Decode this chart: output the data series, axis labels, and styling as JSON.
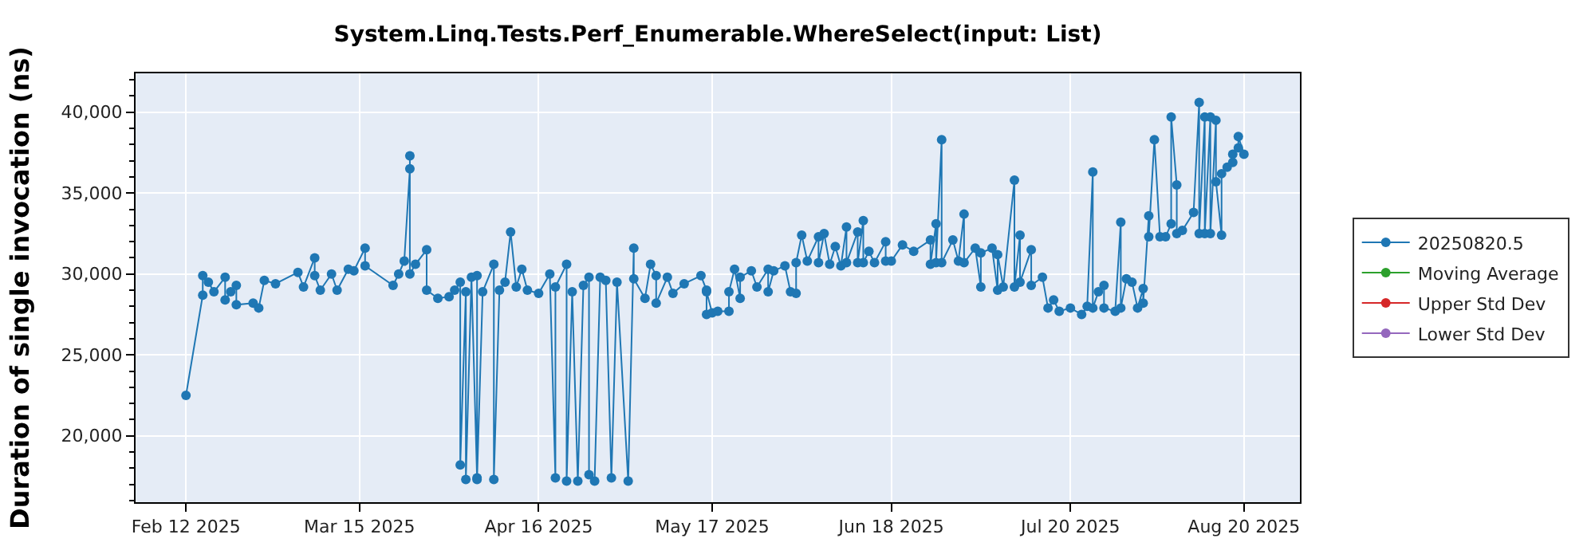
{
  "chart_data": {
    "type": "line",
    "title": "System.Linq.Tests.Perf_Enumerable.WhereSelect(input: List)",
    "ylabel": "Duration of single invocation (ns)",
    "xlim": [
      "2025-02-03",
      "2025-08-30"
    ],
    "xticks": [
      {
        "value": "2025-02-12",
        "label": "Feb 12 2025"
      },
      {
        "value": "2025-03-15",
        "label": "Mar 15 2025"
      },
      {
        "value": "2025-04-16",
        "label": "Apr 16 2025"
      },
      {
        "value": "2025-05-17",
        "label": "May 17 2025"
      },
      {
        "value": "2025-06-18",
        "label": "Jun 18 2025"
      },
      {
        "value": "2025-07-20",
        "label": "Jul 20 2025"
      },
      {
        "value": "2025-08-20",
        "label": "Aug 20 2025"
      }
    ],
    "ylim": [
      15900,
      42400
    ],
    "yticks": [
      {
        "value": 20000,
        "label": "20,000"
      },
      {
        "value": 25000,
        "label": "25,000"
      },
      {
        "value": 30000,
        "label": "30,000"
      },
      {
        "value": 35000,
        "label": "35,000"
      },
      {
        "value": 40000,
        "label": "40,000"
      }
    ],
    "grid": true,
    "legend": "right",
    "marker": "circle",
    "line_style": "solid",
    "series": [
      {
        "name": "20250820.5",
        "color": "#1f77b4",
        "x": [
          "2025-02-12",
          "2025-02-15",
          "2025-02-15",
          "2025-02-16",
          "2025-02-17",
          "2025-02-19",
          "2025-02-19",
          "2025-02-20",
          "2025-02-21",
          "2025-02-21",
          "2025-02-24",
          "2025-02-25",
          "2025-02-26",
          "2025-02-28",
          "2025-03-04",
          "2025-03-05",
          "2025-03-07",
          "2025-03-07",
          "2025-03-08",
          "2025-03-10",
          "2025-03-11",
          "2025-03-13",
          "2025-03-14",
          "2025-03-16",
          "2025-03-16",
          "2025-03-21",
          "2025-03-22",
          "2025-03-23",
          "2025-03-24",
          "2025-03-24",
          "2025-03-24",
          "2025-03-25",
          "2025-03-27",
          "2025-03-27",
          "2025-03-29",
          "2025-03-31",
          "2025-04-01",
          "2025-04-02",
          "2025-04-02",
          "2025-04-03",
          "2025-04-03",
          "2025-04-04",
          "2025-04-05",
          "2025-04-05",
          "2025-04-05",
          "2025-04-06",
          "2025-04-08",
          "2025-04-08",
          "2025-04-09",
          "2025-04-10",
          "2025-04-11",
          "2025-04-12",
          "2025-04-13",
          "2025-04-14",
          "2025-04-16",
          "2025-04-18",
          "2025-04-19",
          "2025-04-19",
          "2025-04-21",
          "2025-04-21",
          "2025-04-22",
          "2025-04-23",
          "2025-04-24",
          "2025-04-25",
          "2025-04-25",
          "2025-04-26",
          "2025-04-27",
          "2025-04-28",
          "2025-04-29",
          "2025-04-30",
          "2025-05-02",
          "2025-05-03",
          "2025-05-03",
          "2025-05-05",
          "2025-05-06",
          "2025-05-07",
          "2025-05-07",
          "2025-05-09",
          "2025-05-10",
          "2025-05-12",
          "2025-05-15",
          "2025-05-16",
          "2025-05-16",
          "2025-05-16",
          "2025-05-17",
          "2025-05-18",
          "2025-05-20",
          "2025-05-20",
          "2025-05-21",
          "2025-05-22",
          "2025-05-22",
          "2025-05-24",
          "2025-05-25",
          "2025-05-27",
          "2025-05-27",
          "2025-05-28",
          "2025-05-30",
          "2025-05-31",
          "2025-06-01",
          "2025-06-01",
          "2025-06-02",
          "2025-06-03",
          "2025-06-05",
          "2025-06-05",
          "2025-06-06",
          "2025-06-07",
          "2025-06-08",
          "2025-06-09",
          "2025-06-10",
          "2025-06-10",
          "2025-06-12",
          "2025-06-12",
          "2025-06-13",
          "2025-06-13",
          "2025-06-14",
          "2025-06-15",
          "2025-06-17",
          "2025-06-17",
          "2025-06-18",
          "2025-06-20",
          "2025-06-22",
          "2025-06-25",
          "2025-06-25",
          "2025-06-26",
          "2025-06-26",
          "2025-06-27",
          "2025-06-27",
          "2025-06-29",
          "2025-06-30",
          "2025-07-01",
          "2025-07-01",
          "2025-07-03",
          "2025-07-04",
          "2025-07-04",
          "2025-07-06",
          "2025-07-07",
          "2025-07-07",
          "2025-07-08",
          "2025-07-10",
          "2025-07-10",
          "2025-07-11",
          "2025-07-11",
          "2025-07-13",
          "2025-07-13",
          "2025-07-15",
          "2025-07-16",
          "2025-07-17",
          "2025-07-18",
          "2025-07-20",
          "2025-07-22",
          "2025-07-23",
          "2025-07-24",
          "2025-07-24",
          "2025-07-25",
          "2025-07-26",
          "2025-07-26",
          "2025-07-28",
          "2025-07-29",
          "2025-07-29",
          "2025-07-30",
          "2025-07-31",
          "2025-08-01",
          "2025-08-02",
          "2025-08-02",
          "2025-08-03",
          "2025-08-03",
          "2025-08-04",
          "2025-08-05",
          "2025-08-06",
          "2025-08-07",
          "2025-08-07",
          "2025-08-08",
          "2025-08-08",
          "2025-08-09",
          "2025-08-11",
          "2025-08-12",
          "2025-08-12",
          "2025-08-13",
          "2025-08-13",
          "2025-08-14",
          "2025-08-14",
          "2025-08-15",
          "2025-08-15",
          "2025-08-16",
          "2025-08-16",
          "2025-08-17",
          "2025-08-18",
          "2025-08-18",
          "2025-08-19",
          "2025-08-19",
          "2025-08-20"
        ],
        "values": [
          22500,
          28700,
          29900,
          29500,
          28900,
          29800,
          28400,
          28900,
          29300,
          28100,
          28200,
          27900,
          29600,
          29400,
          30100,
          29200,
          31000,
          29900,
          29000,
          30000,
          29000,
          30300,
          30200,
          31600,
          30500,
          29300,
          30000,
          30800,
          36500,
          37300,
          30000,
          30600,
          31500,
          29000,
          28500,
          28600,
          29000,
          29500,
          18200,
          28900,
          17300,
          29800,
          17400,
          29900,
          17300,
          28900,
          30600,
          17300,
          29000,
          29500,
          32600,
          29200,
          30300,
          29000,
          28800,
          30000,
          17400,
          29200,
          30600,
          17200,
          28900,
          17200,
          29300,
          29800,
          17600,
          17200,
          29800,
          29600,
          17400,
          29500,
          17200,
          31600,
          29700,
          28500,
          30600,
          29900,
          28200,
          29800,
          28800,
          29400,
          29900,
          29000,
          27500,
          28900,
          27600,
          27700,
          27700,
          28900,
          30300,
          28500,
          29800,
          30200,
          29200,
          30300,
          28900,
          30200,
          30500,
          28900,
          28800,
          30700,
          32400,
          30800,
          32300,
          30700,
          32500,
          30600,
          31700,
          30500,
          32900,
          30700,
          32600,
          30700,
          33300,
          30700,
          31400,
          30700,
          32000,
          30800,
          30800,
          31800,
          31400,
          32100,
          30600,
          33100,
          30700,
          38300,
          30700,
          32100,
          30800,
          33700,
          30700,
          31600,
          29200,
          31300,
          31600,
          29000,
          31200,
          29200,
          35800,
          29200,
          32400,
          29500,
          31500,
          29300,
          29800,
          27900,
          28400,
          27700,
          27900,
          27500,
          28000,
          36300,
          27900,
          28900,
          29300,
          27900,
          27700,
          33200,
          27900,
          29700,
          29500,
          27900,
          29100,
          28200,
          33600,
          32300,
          38300,
          32300,
          32300,
          33100,
          39700,
          35500,
          32500,
          32700,
          33800,
          40600,
          32500,
          39700,
          32500,
          39700,
          32500,
          39500,
          35700,
          32400,
          36200,
          36600,
          36900,
          37400,
          37800,
          38500,
          37400
        ]
      },
      {
        "name": "Moving Average",
        "color": "#2ca02c"
      },
      {
        "name": "Upper Std Dev",
        "color": "#d62728"
      },
      {
        "name": "Lower Std Dev",
        "color": "#9467bd"
      }
    ]
  }
}
